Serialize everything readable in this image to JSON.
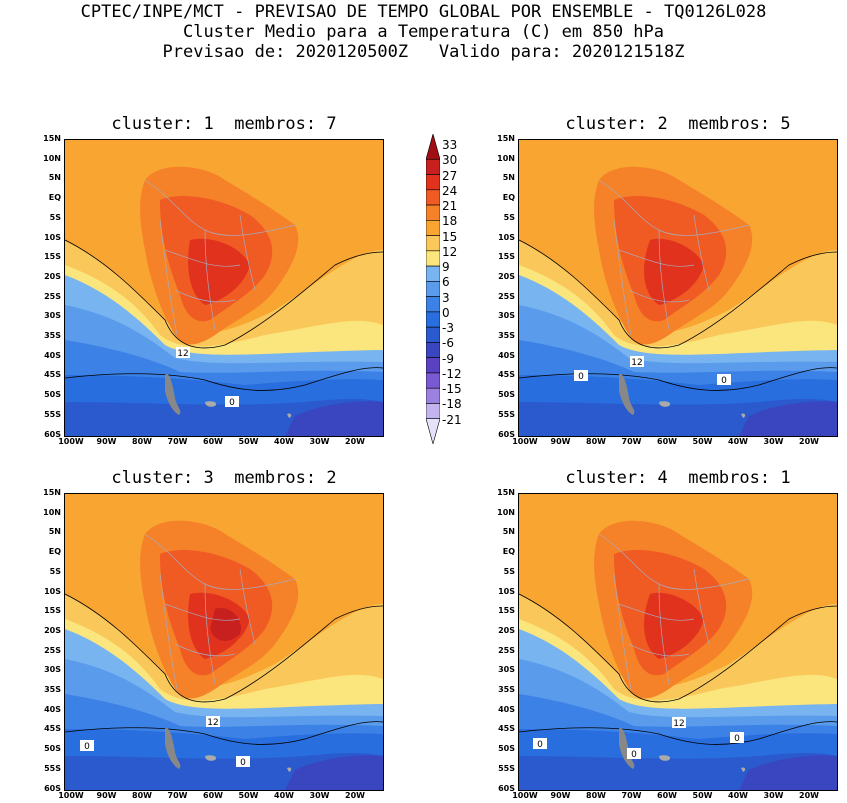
{
  "header": {
    "line1": "CPTEC/INPE/MCT - PREVISAO DE TEMPO GLOBAL POR ENSEMBLE - TQ0126L028",
    "line2": "Cluster Medio para a Temperatura (C) em 850 hPa",
    "line3": "Previsao de: 2020120500Z   Valido para: 2020121518Z"
  },
  "panels": [
    {
      "title": "cluster: 1  membros: 7",
      "labels": [
        "12",
        "0"
      ]
    },
    {
      "title": "cluster: 2  membros: 5",
      "labels": [
        "12",
        "0",
        "0"
      ]
    },
    {
      "title": "cluster: 3  membros: 2",
      "labels": [
        "12",
        "0",
        "0"
      ]
    },
    {
      "title": "cluster: 4  membros: 1",
      "labels": [
        "12",
        "0",
        "0",
        "0"
      ]
    }
  ],
  "lat_ticks": [
    "15N",
    "10N",
    "5N",
    "EQ",
    "5S",
    "10S",
    "15S",
    "20S",
    "25S",
    "30S",
    "35S",
    "40S",
    "45S",
    "50S",
    "55S",
    "60S"
  ],
  "lon_ticks": [
    "100W",
    "90W",
    "80W",
    "70W",
    "60W",
    "50W",
    "40W",
    "30W",
    "20W"
  ],
  "colorbar": {
    "levels": [
      "33",
      "30",
      "27",
      "24",
      "21",
      "18",
      "15",
      "12",
      "9",
      "6",
      "3",
      "0",
      "-3",
      "-6",
      "-9",
      "-12",
      "-15",
      "-18",
      "-21"
    ],
    "colors": [
      "#a00f14",
      "#c8201e",
      "#e1321e",
      "#f05a23",
      "#f58228",
      "#f9a532",
      "#fac85a",
      "#fae67d",
      "#78b4f0",
      "#5a9bec",
      "#3c82e6",
      "#286ede",
      "#2a5acd",
      "#3a46bf",
      "#5a41c2",
      "#7a5ad2",
      "#9b82e1",
      "#c3b4f0",
      "#e6e1fa"
    ]
  },
  "map_colors": {
    "c27": "#c8201e",
    "c24": "#e1321e",
    "c21": "#f05a23",
    "c18": "#f58228",
    "c15": "#f9a532",
    "c12": "#fac85a",
    "c9": "#fae67d",
    "c6": "#78b4f0",
    "c3": "#5a9bec",
    "c0": "#3c82e6",
    "cm3": "#286ede",
    "cm6": "#2a5acd",
    "cm9": "#3a46bf"
  }
}
